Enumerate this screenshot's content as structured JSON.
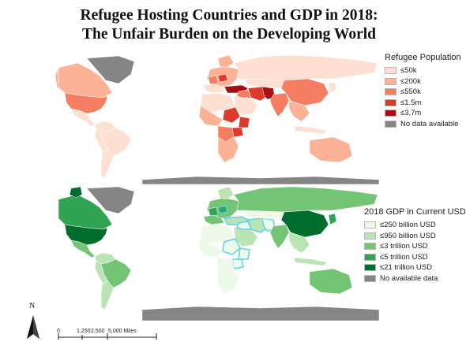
{
  "title": {
    "line1": "Refugee Hosting Countries and GDP in 2018:",
    "line2": "The Unfair Burden on the Developing World"
  },
  "refugee_legend": {
    "title": "Refugee Population",
    "items": [
      {
        "label": "≤50k",
        "color": "#fde0d2"
      },
      {
        "label": "≤200k",
        "color": "#fbb297"
      },
      {
        "label": "≤550k",
        "color": "#f57d61"
      },
      {
        "label": "≤1.5m",
        "color": "#dd3a2c"
      },
      {
        "label": "≤3.7m",
        "color": "#a50f15"
      },
      {
        "label": "No data available",
        "color": "#858585"
      }
    ]
  },
  "gdp_legend": {
    "title": "2018 GDP in Current USD",
    "items": [
      {
        "label": "≤250 billion USD",
        "color": "#edf8e9"
      },
      {
        "label": "≤950 billion USD",
        "color": "#bae4b3"
      },
      {
        "label": "≤3 trillion USD",
        "color": "#74c476"
      },
      {
        "label": "≤5 trillion USD",
        "color": "#31a354"
      },
      {
        "label": "≤21 trillion USD",
        "color": "#006d2c"
      },
      {
        "label": "No available data",
        "color": "#858585"
      }
    ]
  },
  "highlight_color": "#5fd3e6",
  "north_arrow": {
    "label": "N"
  },
  "scale_bar": {
    "labels": [
      "0",
      "1,250",
      "2,500",
      "5,000 Miles"
    ]
  }
}
